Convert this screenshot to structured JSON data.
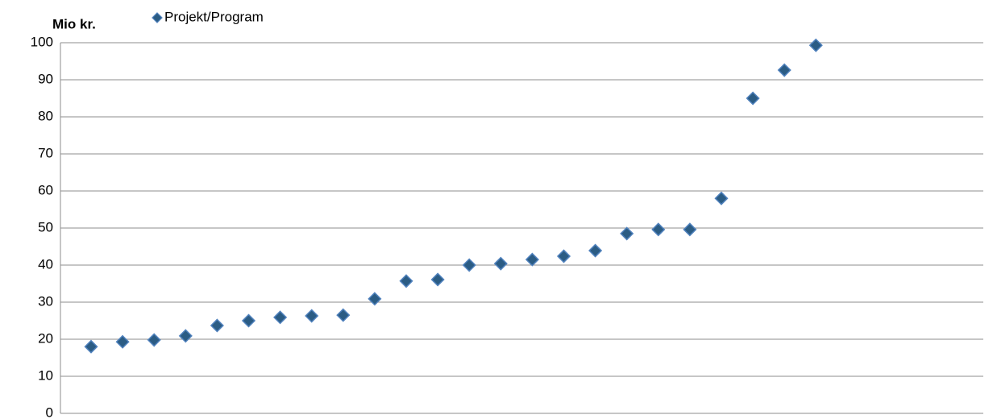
{
  "chart_data": {
    "type": "scatter",
    "y_label": "Mio kr.",
    "categories": [
      null,
      null,
      null,
      null,
      null,
      null,
      null,
      null,
      null,
      null,
      null,
      null,
      null,
      null,
      null,
      null,
      null,
      null,
      null,
      null,
      null,
      null,
      null,
      null
    ],
    "series": [
      {
        "name": "Projekt/Program",
        "color": "#2b5c84",
        "edge_color": "#4f81bd",
        "values": [
          18.0,
          19.3,
          19.8,
          20.9,
          23.7,
          25.0,
          25.9,
          26.3,
          26.5,
          30.9,
          35.7,
          36.1,
          40.0,
          40.4,
          41.5,
          42.4,
          43.9,
          48.5,
          49.6,
          49.6,
          58.0,
          85.0,
          92.6,
          99.3
        ]
      }
    ],
    "ylim": [
      0,
      100
    ],
    "yticks": [
      0,
      10,
      20,
      30,
      40,
      50,
      60,
      70,
      80,
      90,
      100
    ],
    "grid": true,
    "legend": "top"
  }
}
